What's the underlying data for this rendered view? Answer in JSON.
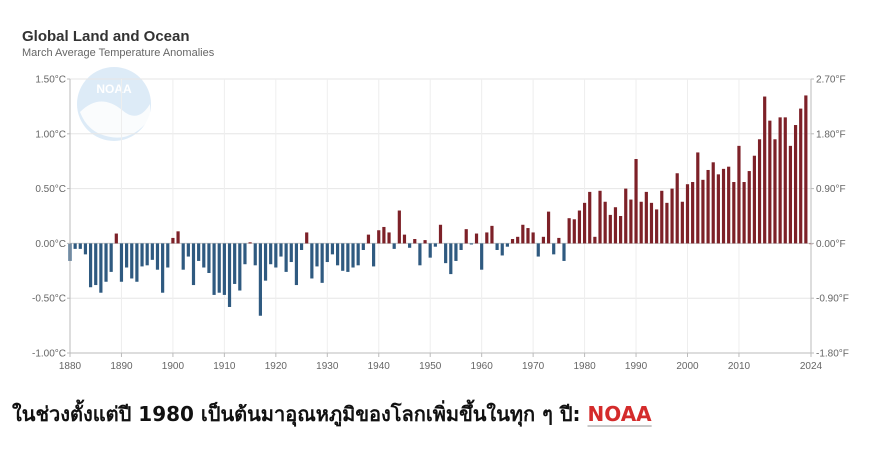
{
  "chart_data": {
    "type": "bar",
    "title": "Global Land and Ocean",
    "subtitle": "March Average Temperature Anomalies",
    "xlim": [
      1880,
      2024
    ],
    "ylim": [
      -1.0,
      1.5
    ],
    "x_ticks": [
      "1880",
      "1890",
      "1900",
      "1910",
      "1920",
      "1930",
      "1940",
      "1950",
      "1960",
      "1970",
      "1980",
      "1990",
      "2000",
      "2010",
      "2024"
    ],
    "y_ticks_left": [
      "1.50°C",
      "1.00°C",
      "0.50°C",
      "0.00°C",
      "-0.50°C",
      "-1.00°C"
    ],
    "y_ticks_right": [
      "2.70°F",
      "1.80°F",
      "0.90°F",
      "0.00°F",
      "-0.90°F",
      "-1.80°F"
    ],
    "grid": true,
    "colors": {
      "positive": "#7d2128",
      "negative": "#2f5a80"
    },
    "x": [
      1880,
      1881,
      1882,
      1883,
      1884,
      1885,
      1886,
      1887,
      1888,
      1889,
      1890,
      1891,
      1892,
      1893,
      1894,
      1895,
      1896,
      1897,
      1898,
      1899,
      1900,
      1901,
      1902,
      1903,
      1904,
      1905,
      1906,
      1907,
      1908,
      1909,
      1910,
      1911,
      1912,
      1913,
      1914,
      1915,
      1916,
      1917,
      1918,
      1919,
      1920,
      1921,
      1922,
      1923,
      1924,
      1925,
      1926,
      1927,
      1928,
      1929,
      1930,
      1931,
      1932,
      1933,
      1934,
      1935,
      1936,
      1937,
      1938,
      1939,
      1940,
      1941,
      1942,
      1943,
      1944,
      1945,
      1946,
      1947,
      1948,
      1949,
      1950,
      1951,
      1952,
      1953,
      1954,
      1955,
      1956,
      1957,
      1958,
      1959,
      1960,
      1961,
      1962,
      1963,
      1964,
      1965,
      1966,
      1967,
      1968,
      1969,
      1970,
      1971,
      1972,
      1973,
      1974,
      1975,
      1976,
      1977,
      1978,
      1979,
      1980,
      1981,
      1982,
      1983,
      1984,
      1985,
      1986,
      1987,
      1988,
      1989,
      1990,
      1991,
      1992,
      1993,
      1994,
      1995,
      1996,
      1997,
      1998,
      1999,
      2000,
      2001,
      2002,
      2003,
      2004,
      2005,
      2006,
      2007,
      2008,
      2009,
      2010,
      2011,
      2012,
      2013,
      2014,
      2015,
      2016,
      2017,
      2018,
      2019,
      2020,
      2021,
      2022,
      2023,
      2024
    ],
    "values": [
      -0.16,
      -0.05,
      -0.05,
      -0.1,
      -0.4,
      -0.38,
      -0.45,
      -0.35,
      -0.26,
      0.09,
      -0.35,
      -0.22,
      -0.32,
      -0.35,
      -0.21,
      -0.2,
      -0.15,
      -0.24,
      -0.45,
      -0.22,
      0.05,
      0.11,
      -0.24,
      -0.12,
      -0.38,
      -0.16,
      -0.22,
      -0.27,
      -0.47,
      -0.45,
      -0.47,
      -0.58,
      -0.37,
      -0.43,
      -0.19,
      0.01,
      -0.2,
      -0.66,
      -0.34,
      -0.19,
      -0.22,
      -0.12,
      -0.26,
      -0.17,
      -0.38,
      -0.06,
      0.1,
      -0.32,
      -0.21,
      -0.36,
      -0.17,
      -0.1,
      -0.2,
      -0.25,
      -0.26,
      -0.22,
      -0.2,
      -0.06,
      0.08,
      -0.21,
      0.12,
      0.15,
      0.1,
      -0.05,
      0.3,
      0.08,
      -0.04,
      0.04,
      -0.2,
      0.03,
      -0.13,
      -0.03,
      0.17,
      -0.18,
      -0.28,
      -0.16,
      -0.06,
      0.13,
      -0.01,
      0.09,
      -0.24,
      0.1,
      0.16,
      -0.06,
      -0.11,
      -0.03,
      0.04,
      0.06,
      0.17,
      0.14,
      0.1,
      -0.12,
      0.06,
      0.29,
      -0.1,
      0.05,
      -0.16,
      0.23,
      0.22,
      0.3,
      0.37,
      0.47,
      0.06,
      0.48,
      0.38,
      0.26,
      0.33,
      0.25,
      0.5,
      0.4,
      0.77,
      0.38,
      0.47,
      0.37,
      0.31,
      0.48,
      0.37,
      0.5,
      0.64,
      0.38,
      0.54,
      0.56,
      0.83,
      0.58,
      0.67,
      0.74,
      0.63,
      0.68,
      0.7,
      0.56,
      0.89,
      0.56,
      0.66,
      0.8,
      0.95,
      1.34,
      1.12,
      0.95,
      1.15,
      1.15,
      0.89,
      1.08,
      1.23,
      1.35,
      0.0
    ]
  },
  "caption": {
    "text": "ในช่วงตั้งแต่ปี 1980 เป็นต้นมาอุณหภูมิของโลกเพิ่มขึ้นในทุก ๆ ปี: ",
    "source": "NOAA"
  }
}
